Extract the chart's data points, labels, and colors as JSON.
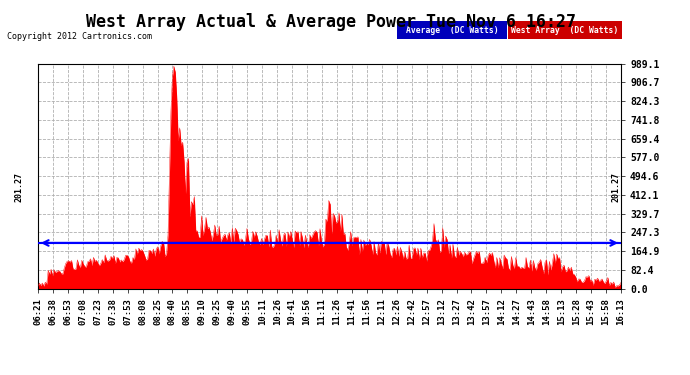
{
  "title": "West Array Actual & Average Power Tue Nov 6 16:27",
  "copyright": "Copyright 2012 Cartronics.com",
  "legend_avg": "Average  (DC Watts)",
  "legend_west": "West Array  (DC Watts)",
  "avg_line_value": 201.27,
  "ymin": 0.0,
  "ymax": 989.1,
  "yticks": [
    0.0,
    82.4,
    164.9,
    247.3,
    329.7,
    412.1,
    494.6,
    577.0,
    659.4,
    741.8,
    824.3,
    906.7,
    989.1
  ],
  "background_color": "#ffffff",
  "plot_bg_color": "#ffffff",
  "grid_color": "#b0b0b0",
  "red_color": "#ff0000",
  "blue_color": "#0000ff",
  "x_labels": [
    "06:21",
    "06:38",
    "06:53",
    "07:08",
    "07:23",
    "07:38",
    "07:53",
    "08:08",
    "08:25",
    "08:40",
    "08:55",
    "09:10",
    "09:25",
    "09:40",
    "09:55",
    "10:11",
    "10:26",
    "10:41",
    "10:56",
    "11:11",
    "11:26",
    "11:41",
    "11:56",
    "12:11",
    "12:26",
    "12:42",
    "12:57",
    "13:12",
    "13:27",
    "13:42",
    "13:57",
    "14:12",
    "14:27",
    "14:43",
    "14:58",
    "15:13",
    "15:28",
    "15:43",
    "15:58",
    "16:13"
  ],
  "title_fontsize": 12,
  "tick_fontsize": 7,
  "legend_fontsize": 6.5
}
